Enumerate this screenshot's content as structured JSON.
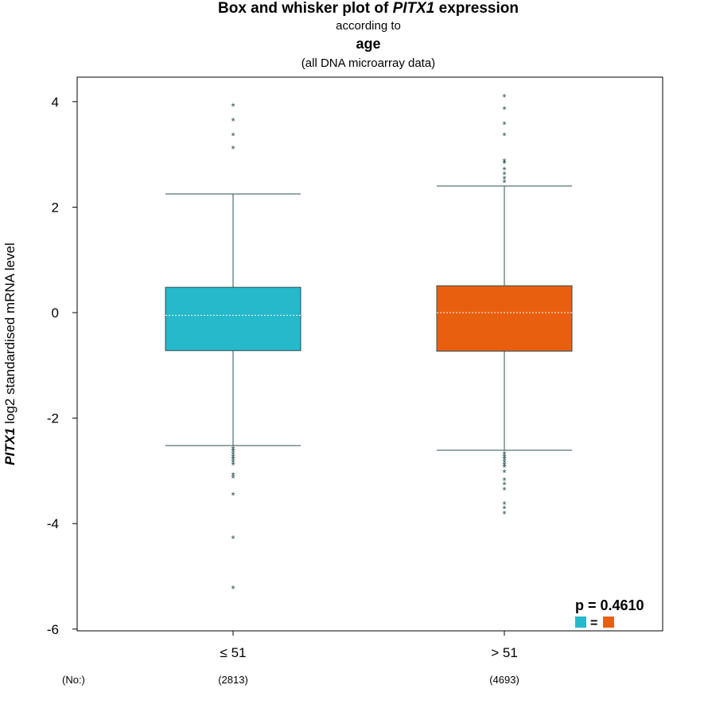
{
  "chart_data": {
    "type": "box",
    "title_prefix": "Box and whisker plot of ",
    "title_gene": "PITX1",
    "title_suffix": " expression",
    "subtitle_1": "according to",
    "subtitle_2": "age",
    "subtitle_3": "(all DNA microarray data)",
    "ylabel_gene": "PITX1",
    "ylabel_rest": " log2 standardised mRNA level",
    "yticks": [
      "4",
      "2",
      "0",
      "-2",
      "-4",
      "-6"
    ],
    "ytick_values": [
      4,
      2,
      0,
      -2,
      -4,
      -6
    ],
    "ylim": [
      -6,
      4.5
    ],
    "no_label": "(No:)",
    "p_value_text": "p = 0.4610",
    "equals_sign": "=",
    "colors": {
      "group1": "#26B8CB",
      "group2": "#E95F10",
      "outline": "#2F4F4F"
    },
    "groups": [
      {
        "label": "≤ 51",
        "count": "(2813)",
        "q1": -0.72,
        "median": -0.05,
        "q3": 0.48,
        "whisker_low": -2.52,
        "whisker_high": 2.25,
        "outliers": [
          3.93,
          3.65,
          3.37,
          3.12,
          -2.57,
          -2.62,
          -2.67,
          -2.72,
          -2.77,
          -2.82,
          -2.87,
          -3.07,
          -3.12,
          -3.45,
          -4.27,
          -5.22
        ]
      },
      {
        "label": "> 51",
        "count": "(4693)",
        "q1": -0.73,
        "median": 0.0,
        "q3": 0.51,
        "whisker_low": -2.61,
        "whisker_high": 2.4,
        "outliers": [
          4.1,
          3.87,
          3.58,
          3.37,
          2.88,
          2.84,
          2.72,
          2.63,
          2.55,
          2.48,
          -2.67,
          -2.72,
          -2.77,
          -2.82,
          -2.87,
          -2.92,
          -3.02,
          -3.17,
          -3.25,
          -3.35,
          -3.62,
          -3.7,
          -3.8
        ]
      }
    ]
  }
}
